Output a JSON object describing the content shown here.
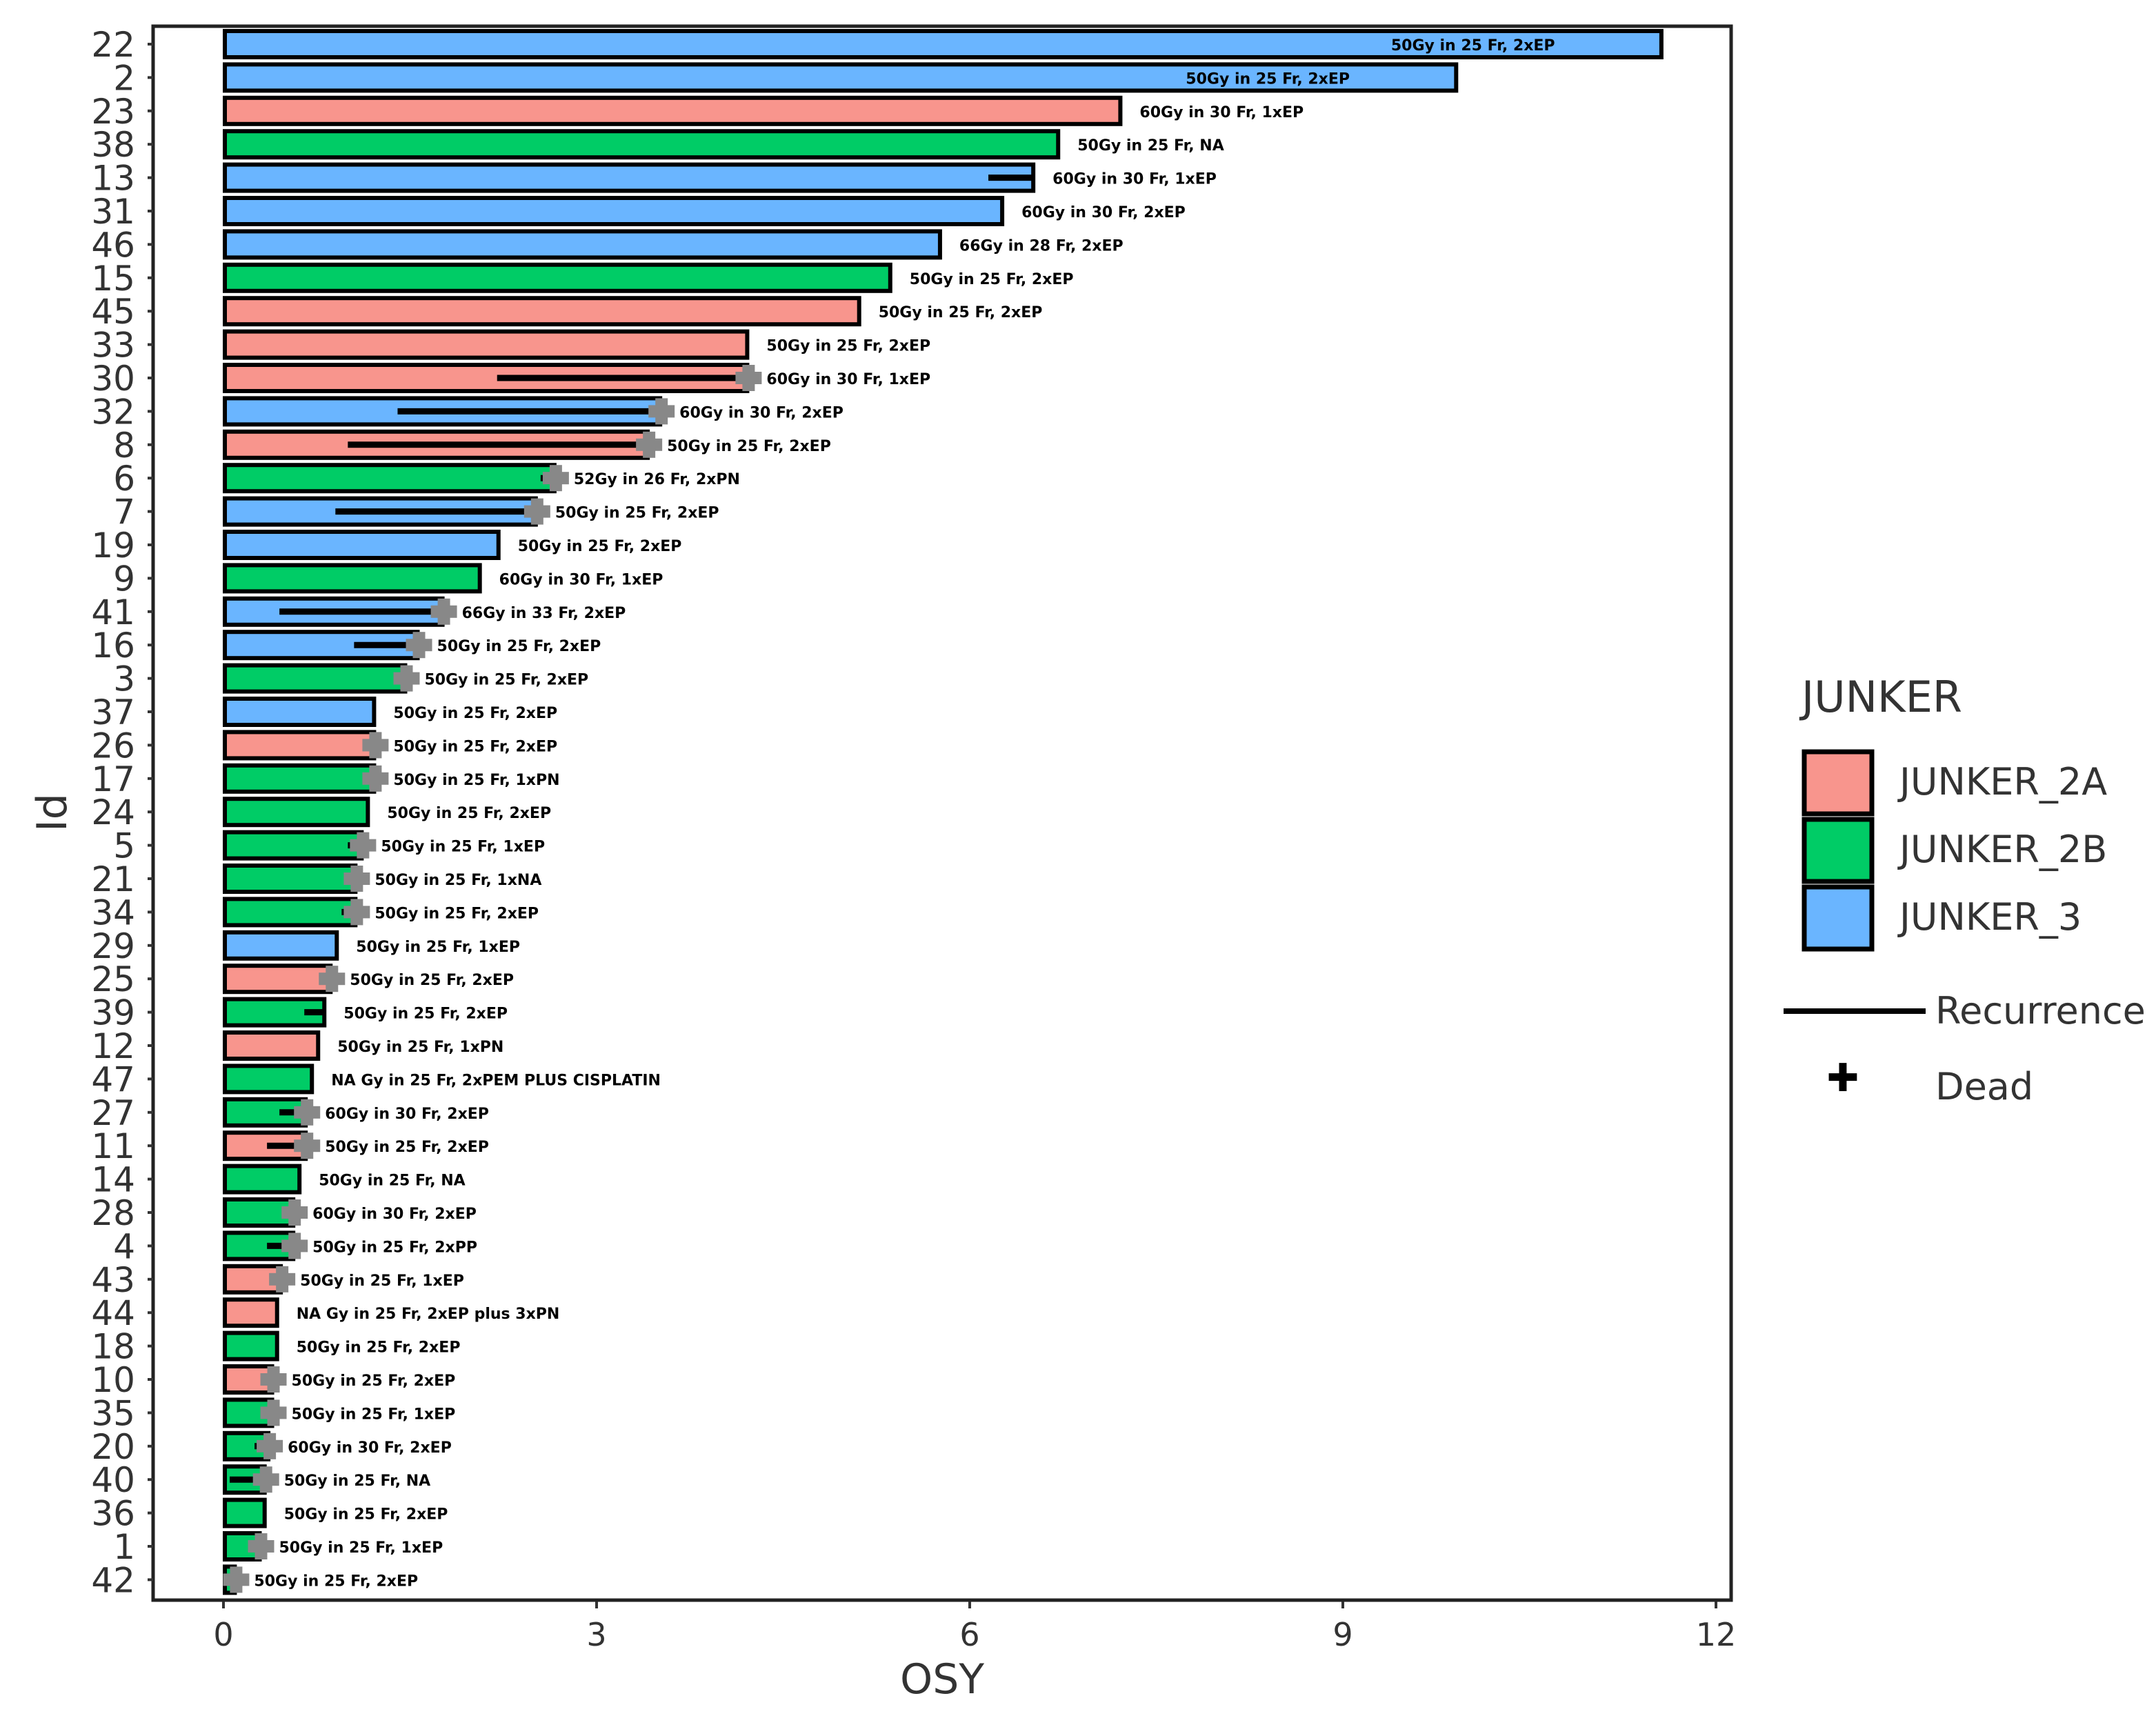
{
  "chart_data": {
    "type": "bar",
    "orientation": "horizontal",
    "xlabel": "OSY",
    "ylabel": "Id",
    "xlim": [
      0,
      12
    ],
    "xticks": [
      "0",
      "3",
      "6",
      "9",
      "12"
    ],
    "legend": {
      "title": "JUNKER",
      "position": "right",
      "items": [
        {
          "name": "JUNKER_2A",
          "color": "#F8958D"
        },
        {
          "name": "JUNKER_2B",
          "color": "#00CC66"
        },
        {
          "name": "JUNKER_3",
          "color": "#6AB5FF"
        }
      ],
      "recurrence_label": "Recurrence",
      "dead_label": "Dead"
    },
    "colors": {
      "JUNKER_2A": "#F8958D",
      "JUNKER_2B": "#00CC66",
      "JUNKER_3": "#6AB5FF",
      "dead_marker": "#888888"
    },
    "bars": [
      {
        "id": "22",
        "group": "JUNKER_3",
        "osy": 11.55,
        "recurrence": null,
        "dead": false,
        "label": "50Gy in 25 Fr, 2xEP"
      },
      {
        "id": "2",
        "group": "JUNKER_3",
        "osy": 9.9,
        "recurrence": null,
        "dead": false,
        "label": "50Gy in 25 Fr, 2xEP"
      },
      {
        "id": "23",
        "group": "JUNKER_2A",
        "osy": 7.2,
        "recurrence": null,
        "dead": false,
        "label": "60Gy in 30 Fr, 1xEP"
      },
      {
        "id": "38",
        "group": "JUNKER_2B",
        "osy": 6.7,
        "recurrence": null,
        "dead": false,
        "label": "50Gy in 25 Fr, NA"
      },
      {
        "id": "13",
        "group": "JUNKER_3",
        "osy": 6.5,
        "recurrence": 6.15,
        "dead": false,
        "label": "60Gy in 30 Fr, 1xEP"
      },
      {
        "id": "31",
        "group": "JUNKER_3",
        "osy": 6.25,
        "recurrence": null,
        "dead": false,
        "label": "60Gy in 30 Fr, 2xEP"
      },
      {
        "id": "46",
        "group": "JUNKER_3",
        "osy": 5.75,
        "recurrence": null,
        "dead": false,
        "label": "66Gy in 28 Fr, 2xEP"
      },
      {
        "id": "15",
        "group": "JUNKER_2B",
        "osy": 5.35,
        "recurrence": null,
        "dead": false,
        "label": "50Gy in 25 Fr, 2xEP"
      },
      {
        "id": "45",
        "group": "JUNKER_2A",
        "osy": 5.1,
        "recurrence": null,
        "dead": false,
        "label": "50Gy in 25 Fr, 2xEP"
      },
      {
        "id": "33",
        "group": "JUNKER_2A",
        "osy": 4.2,
        "recurrence": null,
        "dead": false,
        "label": "50Gy in 25 Fr, 2xEP"
      },
      {
        "id": "30",
        "group": "JUNKER_2A",
        "osy": 4.2,
        "recurrence": 2.2,
        "dead": true,
        "label": "60Gy in 30 Fr, 1xEP"
      },
      {
        "id": "32",
        "group": "JUNKER_3",
        "osy": 3.5,
        "recurrence": 1.4,
        "dead": true,
        "label": "60Gy in 30 Fr, 2xEP"
      },
      {
        "id": "8",
        "group": "JUNKER_2A",
        "osy": 3.4,
        "recurrence": 1.0,
        "dead": true,
        "label": "50Gy in 25 Fr, 2xEP"
      },
      {
        "id": "6",
        "group": "JUNKER_2B",
        "osy": 2.65,
        "recurrence": 2.55,
        "dead": true,
        "label": "52Gy in 26 Fr, 2xPN"
      },
      {
        "id": "7",
        "group": "JUNKER_3",
        "osy": 2.5,
        "recurrence": 0.9,
        "dead": true,
        "label": "50Gy in 25 Fr, 2xEP"
      },
      {
        "id": "19",
        "group": "JUNKER_3",
        "osy": 2.2,
        "recurrence": null,
        "dead": false,
        "label": "50Gy in 25 Fr, 2xEP"
      },
      {
        "id": "9",
        "group": "JUNKER_2B",
        "osy": 2.05,
        "recurrence": null,
        "dead": false,
        "label": "60Gy in 30 Fr, 1xEP"
      },
      {
        "id": "41",
        "group": "JUNKER_3",
        "osy": 1.75,
        "recurrence": 0.45,
        "dead": true,
        "label": "66Gy in 33 Fr, 2xEP"
      },
      {
        "id": "16",
        "group": "JUNKER_3",
        "osy": 1.55,
        "recurrence": 1.05,
        "dead": true,
        "label": "50Gy in 25 Fr, 2xEP"
      },
      {
        "id": "3",
        "group": "JUNKER_2B",
        "osy": 1.45,
        "recurrence": 1.4,
        "dead": true,
        "label": "50Gy in 25 Fr, 2xEP"
      },
      {
        "id": "37",
        "group": "JUNKER_3",
        "osy": 1.2,
        "recurrence": null,
        "dead": false,
        "label": "50Gy in 25 Fr, 2xEP"
      },
      {
        "id": "26",
        "group": "JUNKER_2A",
        "osy": 1.2,
        "recurrence": 1.15,
        "dead": true,
        "label": "50Gy in 25 Fr, 2xEP"
      },
      {
        "id": "17",
        "group": "JUNKER_2B",
        "osy": 1.2,
        "recurrence": 1.15,
        "dead": true,
        "label": "50Gy in 25 Fr, 1xPN"
      },
      {
        "id": "24",
        "group": "JUNKER_2B",
        "osy": 1.15,
        "recurrence": null,
        "dead": false,
        "label": "50Gy in 25 Fr, 2xEP"
      },
      {
        "id": "5",
        "group": "JUNKER_2B",
        "osy": 1.1,
        "recurrence": 1.0,
        "dead": true,
        "label": "50Gy in 25 Fr, 1xEP"
      },
      {
        "id": "21",
        "group": "JUNKER_2B",
        "osy": 1.05,
        "recurrence": 1.0,
        "dead": true,
        "label": "50Gy in 25 Fr, 1xNA"
      },
      {
        "id": "34",
        "group": "JUNKER_2B",
        "osy": 1.05,
        "recurrence": 0.95,
        "dead": true,
        "label": "50Gy in 25 Fr, 2xEP"
      },
      {
        "id": "29",
        "group": "JUNKER_3",
        "osy": 0.9,
        "recurrence": null,
        "dead": false,
        "label": "50Gy in 25 Fr, 1xEP"
      },
      {
        "id": "25",
        "group": "JUNKER_2A",
        "osy": 0.85,
        "recurrence": 0.8,
        "dead": true,
        "label": "50Gy in 25 Fr, 2xEP"
      },
      {
        "id": "39",
        "group": "JUNKER_2B",
        "osy": 0.8,
        "recurrence": 0.65,
        "dead": false,
        "label": "50Gy in 25 Fr, 2xEP"
      },
      {
        "id": "12",
        "group": "JUNKER_2A",
        "osy": 0.75,
        "recurrence": null,
        "dead": false,
        "label": "50Gy in 25 Fr, 1xPN"
      },
      {
        "id": "47",
        "group": "JUNKER_2B",
        "osy": 0.7,
        "recurrence": null,
        "dead": false,
        "label": "NA Gy in 25 Fr, 2xPEM PLUS CISPLATIN"
      },
      {
        "id": "27",
        "group": "JUNKER_2B",
        "osy": 0.65,
        "recurrence": 0.45,
        "dead": true,
        "label": "60Gy in 30 Fr, 2xEP"
      },
      {
        "id": "11",
        "group": "JUNKER_2A",
        "osy": 0.65,
        "recurrence": 0.35,
        "dead": true,
        "label": "50Gy in 25 Fr, 2xEP"
      },
      {
        "id": "14",
        "group": "JUNKER_2B",
        "osy": 0.6,
        "recurrence": null,
        "dead": false,
        "label": "50Gy in 25 Fr, NA"
      },
      {
        "id": "28",
        "group": "JUNKER_2B",
        "osy": 0.55,
        "recurrence": 0.5,
        "dead": true,
        "label": "60Gy in 30 Fr, 2xEP"
      },
      {
        "id": "4",
        "group": "JUNKER_2B",
        "osy": 0.55,
        "recurrence": 0.35,
        "dead": true,
        "label": "50Gy in 25 Fr, 2xPP"
      },
      {
        "id": "43",
        "group": "JUNKER_2A",
        "osy": 0.45,
        "recurrence": 0.4,
        "dead": true,
        "label": "50Gy in 25 Fr, 1xEP"
      },
      {
        "id": "44",
        "group": "JUNKER_2A",
        "osy": 0.42,
        "recurrence": null,
        "dead": false,
        "label": "NA Gy in 25 Fr, 2xEP plus 3xPN"
      },
      {
        "id": "18",
        "group": "JUNKER_2B",
        "osy": 0.42,
        "recurrence": null,
        "dead": false,
        "label": "50Gy in 25 Fr, 2xEP"
      },
      {
        "id": "10",
        "group": "JUNKER_2A",
        "osy": 0.38,
        "recurrence": 0.3,
        "dead": true,
        "label": "50Gy in 25 Fr, 2xEP"
      },
      {
        "id": "35",
        "group": "JUNKER_2B",
        "osy": 0.38,
        "recurrence": 0.35,
        "dead": true,
        "label": "50Gy in 25 Fr, 1xEP"
      },
      {
        "id": "20",
        "group": "JUNKER_2B",
        "osy": 0.35,
        "recurrence": 0.25,
        "dead": true,
        "label": "60Gy in 30 Fr, 2xEP"
      },
      {
        "id": "40",
        "group": "JUNKER_2B",
        "osy": 0.32,
        "recurrence": 0.05,
        "dead": true,
        "label": "50Gy in 25 Fr, NA"
      },
      {
        "id": "36",
        "group": "JUNKER_2B",
        "osy": 0.32,
        "recurrence": null,
        "dead": false,
        "label": "50Gy in 25 Fr, 2xEP"
      },
      {
        "id": "1",
        "group": "JUNKER_2B",
        "osy": 0.28,
        "recurrence": 0.22,
        "dead": true,
        "label": "50Gy in 25 Fr, 1xEP"
      },
      {
        "id": "42",
        "group": "JUNKER_2B",
        "osy": 0.08,
        "recurrence": 0.05,
        "dead": true,
        "label": "50Gy in 25 Fr, 2xEP"
      }
    ]
  }
}
